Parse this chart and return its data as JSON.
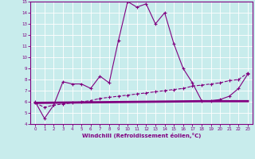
{
  "xlabel": "Windchill (Refroidissement éolien,°C)",
  "xlim": [
    -0.5,
    23.5
  ],
  "ylim": [
    4,
    15
  ],
  "yticks": [
    4,
    5,
    6,
    7,
    8,
    9,
    10,
    11,
    12,
    13,
    14,
    15
  ],
  "xticks": [
    0,
    1,
    2,
    3,
    4,
    5,
    6,
    7,
    8,
    9,
    10,
    11,
    12,
    13,
    14,
    15,
    16,
    17,
    18,
    19,
    20,
    21,
    22,
    23
  ],
  "bg_color": "#c8ecec",
  "line_color": "#800080",
  "grid_color": "#ffffff",
  "series1_x": [
    0,
    1,
    2,
    3,
    4,
    5,
    6,
    7,
    8,
    9,
    10,
    11,
    12,
    13,
    14,
    15,
    16,
    17,
    18,
    19,
    20,
    21,
    22,
    23
  ],
  "series1_y": [
    6.0,
    4.5,
    5.7,
    7.8,
    7.6,
    7.6,
    7.2,
    8.3,
    7.7,
    11.5,
    15.0,
    14.5,
    14.8,
    13.0,
    14.0,
    11.2,
    9.0,
    7.7,
    6.1,
    6.1,
    6.2,
    6.5,
    7.2,
    8.5
  ],
  "series2_x": [
    0,
    1,
    2,
    3,
    4,
    5,
    6,
    7,
    8,
    9,
    10,
    11,
    12,
    13,
    14,
    15,
    16,
    17,
    18,
    19,
    20,
    21,
    22,
    23
  ],
  "series2_y": [
    5.9,
    5.5,
    5.7,
    5.8,
    5.9,
    6.0,
    6.1,
    6.3,
    6.4,
    6.5,
    6.6,
    6.7,
    6.8,
    6.9,
    7.0,
    7.1,
    7.2,
    7.4,
    7.5,
    7.6,
    7.7,
    7.9,
    8.0,
    8.6
  ],
  "series3_x": [
    0,
    18,
    19,
    23
  ],
  "series3_y": [
    5.9,
    6.05,
    6.05,
    6.05
  ]
}
